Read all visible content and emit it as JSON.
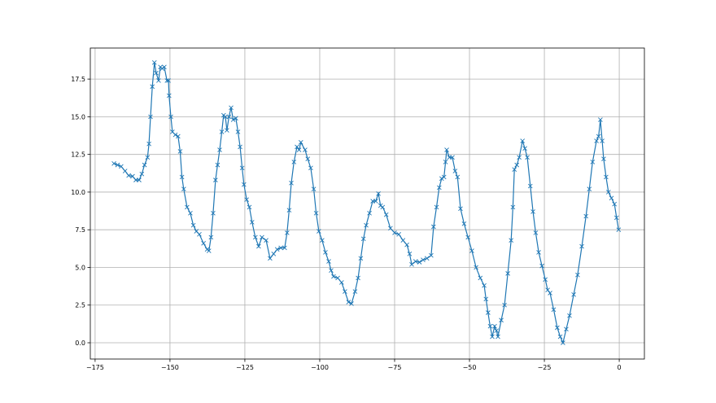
{
  "chart_data": {
    "type": "line",
    "marker": "x",
    "title": "",
    "xlabel": "",
    "ylabel": "",
    "xlim": [
      -176.6,
      8.4
    ],
    "ylim": [
      -1.08,
      19.56
    ],
    "grid": true,
    "color": "#1f77b4",
    "x_ticks": [
      -175,
      -150,
      -125,
      -100,
      -75,
      -50,
      -25,
      0
    ],
    "x_tick_labels": [
      "−175",
      "−150",
      "−125",
      "−100",
      "−75",
      "−50",
      "−25",
      "0"
    ],
    "y_ticks": [
      0,
      2.5,
      5,
      7.5,
      10,
      12.5,
      15,
      17.5
    ],
    "y_tick_labels": [
      "0.0",
      "2.5",
      "5.0",
      "7.5",
      "10.0",
      "12.5",
      "15.0",
      "17.5"
    ],
    "series": [
      {
        "points": [
          [
            -168.7,
            11.9
          ],
          [
            -167.5,
            11.8
          ],
          [
            -166.3,
            11.7
          ],
          [
            -165,
            11.4
          ],
          [
            -163.8,
            11.1
          ],
          [
            -162.5,
            11.05
          ],
          [
            -161.4,
            10.8
          ],
          [
            -160.3,
            10.8
          ],
          [
            -159.4,
            11.2
          ],
          [
            -158.5,
            11.8
          ],
          [
            -157.5,
            12.3
          ],
          [
            -157,
            13.2
          ],
          [
            -156.5,
            15.0
          ],
          [
            -155.9,
            17.0
          ],
          [
            -155.2,
            18.6
          ],
          [
            -154.6,
            17.9
          ],
          [
            -153.8,
            17.4
          ],
          [
            -153.2,
            18.3
          ],
          [
            -152.6,
            18.2
          ],
          [
            -151.9,
            18.3
          ],
          [
            -151,
            17.4
          ],
          [
            -150.5,
            17.4
          ],
          [
            -150.3,
            16.4
          ],
          [
            -149.7,
            15.0
          ],
          [
            -149.2,
            14.0
          ],
          [
            -148.2,
            13.8
          ],
          [
            -147.3,
            13.7
          ],
          [
            -146.6,
            12.7
          ],
          [
            -146,
            11.0
          ],
          [
            -145.4,
            10.2
          ],
          [
            -144.3,
            9.0
          ],
          [
            -143.2,
            8.6
          ],
          [
            -142.2,
            7.8
          ],
          [
            -141.2,
            7.4
          ],
          [
            -140.2,
            7.2
          ],
          [
            -138.8,
            6.6
          ],
          [
            -137.6,
            6.2
          ],
          [
            -137,
            6.1
          ],
          [
            -136.3,
            7.0
          ],
          [
            -135.6,
            8.6
          ],
          [
            -134.8,
            10.8
          ],
          [
            -134.1,
            11.8
          ],
          [
            -133.4,
            12.8
          ],
          [
            -132.7,
            14.0
          ],
          [
            -132.1,
            15.1
          ],
          [
            -131.5,
            15.0
          ],
          [
            -131,
            14.1
          ],
          [
            -130.3,
            15.0
          ],
          [
            -129.6,
            15.6
          ],
          [
            -128.9,
            14.8
          ],
          [
            -128,
            14.9
          ],
          [
            -127.3,
            14.0
          ],
          [
            -126.6,
            13.0
          ],
          [
            -125.9,
            11.6
          ],
          [
            -125.3,
            10.5
          ],
          [
            -124.4,
            9.5
          ],
          [
            -123.5,
            9.0
          ],
          [
            -122.6,
            8.0
          ],
          [
            -121.5,
            7.0
          ],
          [
            -120.4,
            6.4
          ],
          [
            -119.3,
            7.0
          ],
          [
            -117.9,
            6.8
          ],
          [
            -116.6,
            5.6
          ],
          [
            -115.4,
            5.9
          ],
          [
            -114.2,
            6.2
          ],
          [
            -113,
            6.3
          ],
          [
            -111.7,
            6.3
          ],
          [
            -110.9,
            7.3
          ],
          [
            -110.2,
            8.8
          ],
          [
            -109.5,
            10.6
          ],
          [
            -108.6,
            12.0
          ],
          [
            -107.6,
            13.0
          ],
          [
            -106.9,
            12.8
          ],
          [
            -106.3,
            13.3
          ],
          [
            -104.9,
            12.8
          ],
          [
            -104,
            12.2
          ],
          [
            -103,
            11.6
          ],
          [
            -102,
            10.2
          ],
          [
            -101.2,
            8.6
          ],
          [
            -100.3,
            7.4
          ],
          [
            -99.2,
            6.8
          ],
          [
            -98.1,
            6.0
          ],
          [
            -97,
            5.4
          ],
          [
            -96.2,
            4.8
          ],
          [
            -95.4,
            4.4
          ],
          [
            -94,
            4.3
          ],
          [
            -92.7,
            4.0
          ],
          [
            -91.6,
            3.4
          ],
          [
            -90.4,
            2.7
          ],
          [
            -89.4,
            2.6
          ],
          [
            -88.2,
            3.4
          ],
          [
            -87.2,
            4.3
          ],
          [
            -86.3,
            5.6
          ],
          [
            -85.4,
            6.9
          ],
          [
            -84.5,
            7.8
          ],
          [
            -83.4,
            8.6
          ],
          [
            -82.3,
            9.4
          ],
          [
            -81.3,
            9.4
          ],
          [
            -80.4,
            9.9
          ],
          [
            -79.7,
            9.1
          ],
          [
            -79,
            9.0
          ],
          [
            -77.8,
            8.5
          ],
          [
            -76.4,
            7.6
          ],
          [
            -75,
            7.3
          ],
          [
            -73.6,
            7.2
          ],
          [
            -72.2,
            6.8
          ],
          [
            -70.9,
            6.5
          ],
          [
            -70,
            5.9
          ],
          [
            -69.3,
            5.2
          ],
          [
            -68,
            5.4
          ],
          [
            -66.7,
            5.35
          ],
          [
            -65.5,
            5.5
          ],
          [
            -64.2,
            5.6
          ],
          [
            -62.8,
            5.8
          ],
          [
            -62,
            7.7
          ],
          [
            -61,
            9.0
          ],
          [
            -60.1,
            10.3
          ],
          [
            -59.3,
            10.9
          ],
          [
            -58.5,
            11.0
          ],
          [
            -58,
            12.0
          ],
          [
            -57.6,
            12.8
          ],
          [
            -56.7,
            12.3
          ],
          [
            -55.7,
            12.3
          ],
          [
            -54.8,
            11.4
          ],
          [
            -54,
            11.0
          ],
          [
            -53,
            8.9
          ],
          [
            -51.8,
            7.9
          ],
          [
            -50.5,
            7.0
          ],
          [
            -49.2,
            6.1
          ],
          [
            -47.8,
            5.0
          ],
          [
            -46.4,
            4.3
          ],
          [
            -45.1,
            3.8
          ],
          [
            -44.5,
            2.9
          ],
          [
            -43.8,
            2.0
          ],
          [
            -43.1,
            1.1
          ],
          [
            -42.4,
            0.4
          ],
          [
            -41.6,
            1.1
          ],
          [
            -41,
            0.8
          ],
          [
            -40.5,
            0.4
          ],
          [
            -39.4,
            1.5
          ],
          [
            -38.3,
            2.5
          ],
          [
            -37.2,
            4.6
          ],
          [
            -36.1,
            6.8
          ],
          [
            -35.5,
            9.0
          ],
          [
            -35,
            11.5
          ],
          [
            -34.2,
            11.8
          ],
          [
            -33.4,
            12.3
          ],
          [
            -32.3,
            13.4
          ],
          [
            -31.5,
            12.9
          ],
          [
            -30.7,
            12.3
          ],
          [
            -29.7,
            10.4
          ],
          [
            -28.8,
            8.7
          ],
          [
            -27.9,
            7.3
          ],
          [
            -26.9,
            6.0
          ],
          [
            -25.8,
            5.1
          ],
          [
            -24.7,
            4.2
          ],
          [
            -23.9,
            3.5
          ],
          [
            -23.1,
            3.3
          ],
          [
            -21.9,
            2.2
          ],
          [
            -20.7,
            1.0
          ],
          [
            -19.7,
            0.4
          ],
          [
            -18.8,
            0.0
          ],
          [
            -17.7,
            0.9
          ],
          [
            -16.6,
            1.8
          ],
          [
            -15.2,
            3.2
          ],
          [
            -13.9,
            4.5
          ],
          [
            -12.5,
            6.4
          ],
          [
            -11.1,
            8.4
          ],
          [
            -10,
            10.2
          ],
          [
            -8.9,
            12.0
          ],
          [
            -7.6,
            13.4
          ],
          [
            -6.9,
            13.7
          ],
          [
            -6.3,
            14.8
          ],
          [
            -5.7,
            13.4
          ],
          [
            -5.2,
            12.2
          ],
          [
            -4.4,
            11.0
          ],
          [
            -3.6,
            10.0
          ],
          [
            -2.6,
            9.6
          ],
          [
            -1.6,
            9.2
          ],
          [
            -0.9,
            8.3
          ],
          [
            -0.2,
            7.5
          ]
        ]
      }
    ]
  }
}
